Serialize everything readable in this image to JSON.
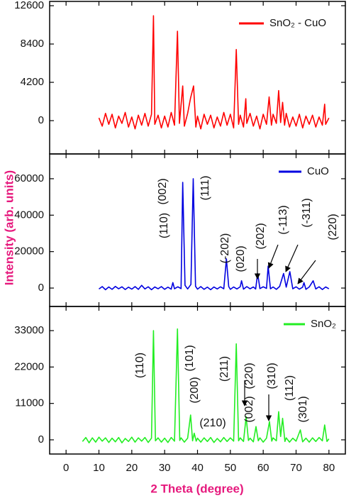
{
  "chart_data": [
    {
      "type": "line",
      "series": [
        {
          "name": "SnO₂ - CuO",
          "color": "#ff0000",
          "x": [
            10,
            11,
            12,
            13,
            14,
            15,
            16,
            17,
            18,
            19,
            20,
            21,
            22,
            23,
            24,
            25,
            26,
            26.6,
            27,
            28,
            29,
            30,
            31,
            32,
            33,
            33.9,
            34.5,
            35.5,
            36,
            37,
            37.9,
            38.8,
            39.5,
            40,
            41,
            42,
            43,
            44,
            45,
            46,
            47,
            48,
            49,
            50,
            51,
            51.8,
            52.5,
            53,
            54,
            54.7,
            55,
            56,
            57,
            58,
            59,
            60,
            61,
            61.8,
            62.5,
            63,
            64,
            64.7,
            65.3,
            65.9,
            66.5,
            67,
            68,
            69,
            70,
            71,
            72,
            73,
            74,
            75,
            76,
            77,
            78,
            78.7,
            79,
            80
          ],
          "values": [
            300,
            -600,
            800,
            -400,
            700,
            -800,
            500,
            -300,
            900,
            -700,
            400,
            -900,
            600,
            -500,
            800,
            -600,
            700,
            11500,
            -400,
            600,
            -800,
            500,
            -700,
            900,
            -500,
            9800,
            -300,
            3800,
            -600,
            800,
            2500,
            3800,
            -700,
            500,
            -900,
            700,
            -400,
            600,
            -800,
            400,
            -600,
            900,
            -500,
            700,
            -800,
            7800,
            -400,
            600,
            -700,
            2400,
            -300,
            800,
            -600,
            500,
            -900,
            700,
            -400,
            2600,
            -500,
            700,
            -300,
            3300,
            -200,
            2000,
            -500,
            800,
            -700,
            400,
            -600,
            700,
            -800,
            500,
            -400,
            600,
            -700,
            400,
            -500,
            1800,
            -400,
            300
          ]
        }
      ],
      "xlim": [
        -5,
        85
      ],
      "xticks": [
        0,
        10,
        20,
        30,
        40,
        50,
        60,
        70,
        80
      ],
      "ylim": [
        -3650,
        13070
      ],
      "yticks": [
        0,
        4200,
        8400,
        12600
      ],
      "annotations": []
    },
    {
      "type": "line",
      "ylabel": "Intensity (arb. units)",
      "series": [
        {
          "name": "CuO",
          "color": "#0000e0",
          "x": [
            10,
            11,
            12,
            13,
            14,
            15,
            16,
            17,
            18,
            19,
            20,
            21,
            22,
            23,
            24,
            25,
            26,
            27,
            28,
            29,
            30,
            31,
            32,
            32.5,
            33,
            34,
            35,
            35.5,
            36.2,
            37,
            38,
            38.7,
            39.4,
            40,
            41,
            42,
            43,
            44,
            45,
            46,
            47,
            48,
            48.8,
            49.5,
            50,
            51,
            52,
            53,
            53.4,
            54,
            55,
            56,
            57,
            57.7,
            58.3,
            59,
            60,
            61,
            61.5,
            62.2,
            63,
            64,
            65,
            66.2,
            67,
            68.1,
            69,
            70,
            71,
            72,
            72.4,
            73,
            74,
            75.2,
            76,
            77,
            78,
            79,
            80
          ],
          "values": [
            -500,
            800,
            -900,
            600,
            -700,
            900,
            -400,
            700,
            -800,
            500,
            -600,
            800,
            -700,
            1500,
            -500,
            700,
            -900,
            600,
            -400,
            800,
            -700,
            500,
            -600,
            3000,
            -400,
            700,
            -300,
            58000,
            1500,
            -500,
            2000,
            60000,
            1000,
            -600,
            800,
            -700,
            500,
            -900,
            600,
            -500,
            700,
            -400,
            16000,
            800,
            -700,
            600,
            -500,
            700,
            4000,
            -600,
            800,
            -400,
            600,
            -500,
            8000,
            -300,
            700,
            -200,
            12000,
            -400,
            600,
            -700,
            900,
            8000,
            500,
            9000,
            -400,
            700,
            -600,
            500,
            3000,
            -700,
            600,
            4000,
            -500,
            700,
            -800,
            600,
            -400
          ]
        }
      ],
      "xlim": [
        -5,
        85
      ],
      "xticks": [
        0,
        10,
        20,
        30,
        40,
        50,
        60,
        70,
        80
      ],
      "ylim": [
        -10100,
        73600
      ],
      "yticks": [
        0,
        20000,
        40000,
        60000
      ],
      "annotations": [
        {
          "text": "(110)"
        },
        {
          "text": "(002)"
        },
        {
          "text": "(111)"
        },
        {
          "text": "(-202)"
        },
        {
          "text": "(020)"
        },
        {
          "text": "(202)"
        },
        {
          "text": "(-113)"
        },
        {
          "text": "(-311)"
        },
        {
          "text": "(220)"
        }
      ]
    },
    {
      "type": "line",
      "xlabel": "2 Theta (degree)",
      "series": [
        {
          "name": "SnO₂",
          "color": "#22ee22",
          "x": [
            5,
            6,
            7,
            8,
            9,
            10,
            11,
            12,
            13,
            14,
            15,
            16,
            17,
            18,
            19,
            20,
            21,
            22,
            23,
            24,
            25,
            26,
            26.6,
            27.2,
            28,
            29,
            30,
            31,
            32,
            33,
            33.9,
            34.6,
            35,
            36,
            37,
            37.9,
            38.5,
            39,
            39.6,
            40,
            41,
            42,
            43,
            44,
            45,
            46,
            47,
            48,
            49,
            50,
            51,
            51.8,
            52.5,
            53,
            54,
            54.8,
            55.5,
            56,
            57,
            57.8,
            58.5,
            59,
            60,
            61,
            61.9,
            62.6,
            63,
            64,
            64.7,
            65.3,
            65.9,
            66.6,
            67,
            68,
            69,
            70,
            71.3,
            72,
            73,
            74,
            75,
            76,
            77,
            78,
            78.7,
            79.4,
            80
          ],
          "values": [
            -500,
            700,
            -900,
            600,
            -700,
            800,
            -400,
            600,
            -800,
            500,
            -600,
            700,
            -900,
            400,
            -500,
            800,
            -700,
            600,
            -400,
            700,
            -800,
            500,
            33000,
            -300,
            600,
            -700,
            500,
            -800,
            700,
            -400,
            33500,
            -200,
            600,
            -700,
            500,
            7500,
            -300,
            2000,
            -400,
            500,
            -700,
            600,
            -500,
            700,
            -800,
            400,
            -600,
            700,
            -500,
            600,
            -400,
            29000,
            -300,
            600,
            -500,
            7000,
            -200,
            500,
            -600,
            4000,
            -300,
            600,
            -700,
            500,
            5500,
            -400,
            600,
            -300,
            8500,
            1000,
            6500,
            -500,
            600,
            -700,
            500,
            -400,
            3000,
            -600,
            500,
            -700,
            600,
            -500,
            700,
            -300,
            4500,
            -500,
            300
          ]
        }
      ],
      "xlim": [
        -5,
        85
      ],
      "xticks": [
        0,
        10,
        20,
        30,
        40,
        50,
        60,
        70,
        80
      ],
      "ylim": [
        -4290,
        40300
      ],
      "yticks": [
        0,
        11000,
        22000,
        33000
      ],
      "annotations": [
        {
          "text": "(110)"
        },
        {
          "text": "(101)"
        },
        {
          "text": "(200)"
        },
        {
          "text": "(210)"
        },
        {
          "text": "(211)"
        },
        {
          "text": "(220)"
        },
        {
          "text": "(002)"
        },
        {
          "text": "(310)"
        },
        {
          "text": "(112)"
        },
        {
          "text": "(301)"
        }
      ]
    }
  ]
}
